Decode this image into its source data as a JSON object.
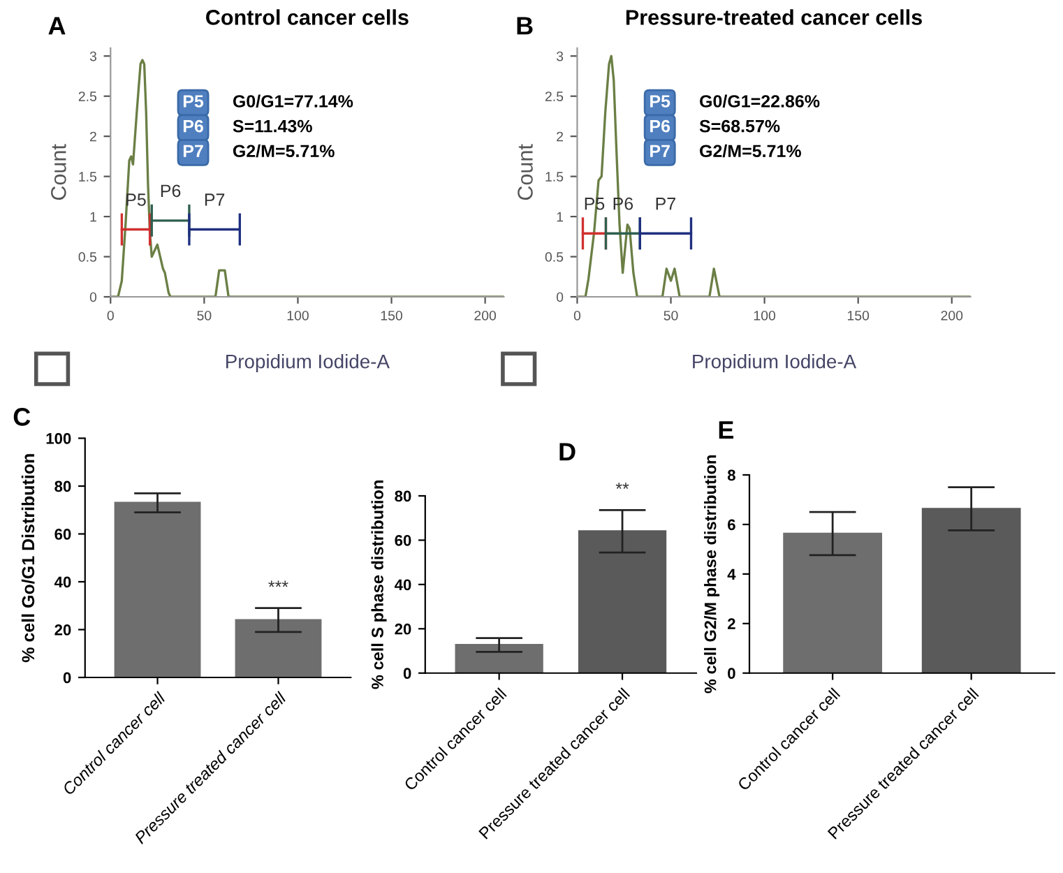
{
  "chart_data": [
    {
      "type": "line",
      "title": "Control cancer cells",
      "xlabel": "Propidium Iodide-A",
      "ylabel": "Count",
      "xlim": [
        0,
        210
      ],
      "ylim": [
        0,
        3.1
      ],
      "xticks": [
        0,
        50,
        100,
        150,
        200
      ],
      "yticks": [
        0,
        0.5,
        1,
        1.5,
        2,
        2.5,
        3
      ],
      "grid": false,
      "legend": false,
      "annotations": [
        "A",
        "P5",
        "G0/G1=77.14%",
        "P6",
        "S=11.43%",
        "P7",
        "G2/M=5.71%"
      ],
      "series": [
        {
          "color": "#6b7f45",
          "x": [
            0,
            4,
            6,
            8,
            10,
            11,
            12,
            14,
            16,
            17,
            18,
            19,
            20,
            21,
            22,
            23,
            25,
            26,
            28,
            29,
            31,
            32,
            56,
            58,
            61,
            63,
            210
          ],
          "values": [
            0,
            0,
            0.2,
            0.9,
            1.7,
            1.75,
            1.65,
            2.3,
            2.9,
            2.95,
            2.9,
            2.3,
            1.4,
            0.8,
            0.5,
            0.55,
            0.65,
            0.55,
            0.35,
            0.3,
            0.05,
            0,
            0,
            0.33,
            0.33,
            0,
            0
          ]
        },
        {
          "type": "line",
          "name": "P5",
          "color": "#d03030",
          "x": [
            6,
            21
          ],
          "values": [
            0.84,
            0.84
          ]
        },
        {
          "type": "line",
          "name": "P6",
          "color": "#2f5f4f",
          "x": [
            22,
            42
          ],
          "values": [
            0.95,
            0.95
          ]
        },
        {
          "type": "line",
          "name": "P7",
          "color": "#1f2f7f",
          "x": [
            42,
            69
          ],
          "values": [
            0.84,
            0.84
          ]
        }
      ]
    },
    {
      "type": "line",
      "title": "Pressure-treated cancer cells",
      "xlabel": "Propidium Iodide-A",
      "ylabel": "Count",
      "xlim": [
        0,
        210
      ],
      "ylim": [
        0,
        3.1
      ],
      "xticks": [
        0,
        50,
        100,
        150,
        200
      ],
      "yticks": [
        0,
        0.5,
        1,
        1.5,
        2,
        2.5,
        3
      ],
      "grid": false,
      "legend": false,
      "annotations": [
        "B",
        "P5",
        "G0/G1=22.86%",
        "P6",
        "S=68.57%",
        "P7",
        "G2/M=5.71%"
      ],
      "series": [
        {
          "color": "#6b7f45",
          "x": [
            0,
            4.4,
            6,
            9,
            11.4,
            13,
            15,
            17,
            18.2,
            19.5,
            21,
            22.6,
            24.3,
            26.8,
            28,
            30,
            32,
            45.5,
            47.7,
            50,
            52,
            54.7,
            70.6,
            73,
            76,
            210
          ],
          "values": [
            0,
            0,
            0.22,
            0.8,
            1.45,
            1.5,
            2.3,
            2.9,
            3.0,
            2.7,
            1.8,
            0.9,
            0.3,
            0.9,
            0.85,
            0.3,
            0,
            0,
            0.35,
            0.2,
            0.35,
            0,
            0,
            0.35,
            0,
            0
          ]
        },
        {
          "type": "line",
          "name": "P5",
          "color": "#d03030",
          "x": [
            3,
            15.3
          ],
          "values": [
            0.79,
            0.79
          ]
        },
        {
          "type": "line",
          "name": "P6",
          "color": "#2f5f4f",
          "x": [
            15.3,
            33.5
          ],
          "values": [
            0.79,
            0.79
          ]
        },
        {
          "type": "line",
          "name": "P7",
          "color": "#1f2f7f",
          "x": [
            33.5,
            60.8
          ],
          "values": [
            0.79,
            0.79
          ]
        }
      ]
    },
    {
      "type": "bar",
      "ylabel": "% cell Go/G1 Distribution",
      "categories": [
        "Control cancer cell",
        "Pressure treated cancer cell"
      ],
      "values": [
        73,
        24
      ],
      "errors": [
        4,
        5
      ],
      "colors": [
        "#6e6e6e",
        "#6e6e6e"
      ],
      "ylim": [
        0,
        100
      ],
      "yticks": [
        0,
        20,
        40,
        60,
        80,
        100
      ],
      "grid": false,
      "legend": false,
      "annotations": [
        "C",
        "***"
      ]
    },
    {
      "type": "bar",
      "ylabel": "% cell S phase distribution",
      "categories": [
        "Control cancer cell",
        "Pressure treated cancer cell"
      ],
      "values": [
        12.7,
        64
      ],
      "errors": [
        3.1,
        9.6
      ],
      "colors": [
        "#6e6e6e",
        "#5a5a5a"
      ],
      "ylim": [
        0,
        80
      ],
      "yticks": [
        0,
        20,
        40,
        60,
        80
      ],
      "grid": false,
      "legend": false,
      "annotations": [
        "D",
        "**"
      ]
    },
    {
      "type": "bar",
      "ylabel": "% cell G2/M phase distribution",
      "categories": [
        "Control cancer cell",
        "Pressure treated cancer cell"
      ],
      "values": [
        5.63,
        6.63
      ],
      "errors": [
        0.87,
        0.87
      ],
      "colors": [
        "#6e6e6e",
        "#5a5a5a"
      ],
      "ylim": [
        0,
        8
      ],
      "yticks": [
        0,
        2,
        4,
        6,
        8
      ],
      "grid": false,
      "legend": false,
      "annotations": [
        "E"
      ]
    }
  ]
}
